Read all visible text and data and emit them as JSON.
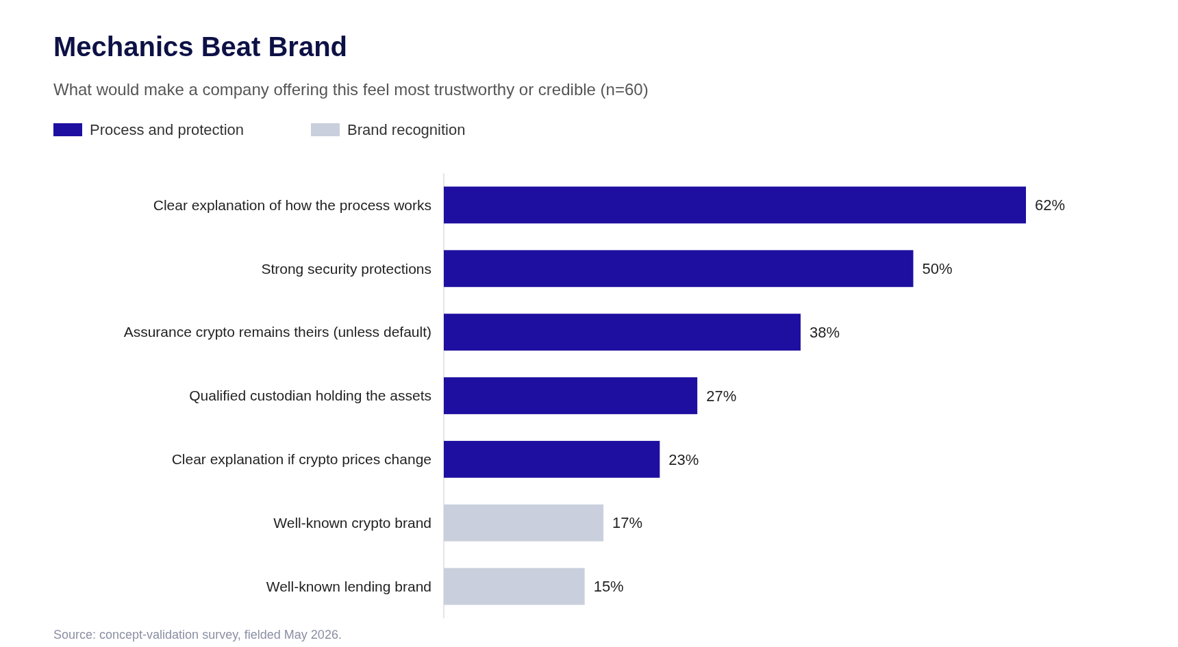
{
  "chart_data": {
    "type": "bar",
    "orientation": "horizontal",
    "title": "Mechanics Beat Brand",
    "subtitle": "What would make a company offering this feel most trustworthy or credible (n=60)",
    "legend": "top left",
    "categories": [
      "Clear explanation of how the process works",
      "Strong security protections",
      "Assurance crypto remains theirs (unless default)",
      "Qualified custodian holding the assets",
      "Clear explanation if crypto prices change",
      "Well-known crypto brand",
      "Well-known lending brand"
    ],
    "series": [
      {
        "name": "Process and protection",
        "color": "#1e0fa0",
        "values": [
          62,
          50,
          38,
          27,
          23,
          null,
          null
        ],
        "value_labels": [
          "62%",
          "50%",
          "38%",
          "27%",
          "23%",
          null,
          null
        ]
      },
      {
        "name": "Brand recognition",
        "color": "#c9cfdc",
        "values": [
          null,
          null,
          null,
          null,
          null,
          17,
          15
        ],
        "value_labels": [
          null,
          null,
          null,
          null,
          null,
          "17%",
          "15%"
        ]
      }
    ],
    "annotations": [
      "Source: concept-validation survey, fielded May 2026."
    ]
  }
}
